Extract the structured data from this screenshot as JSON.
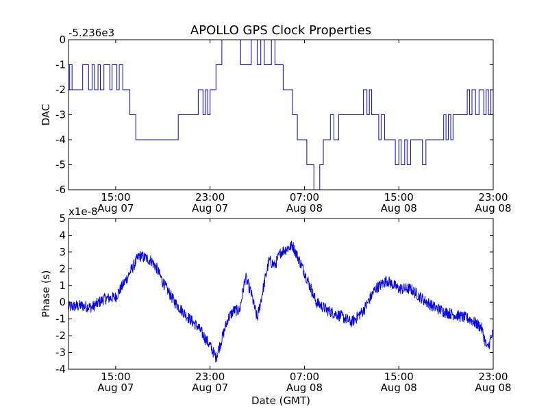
{
  "figure_title": "APOLLO GPS Clock Properties",
  "chart_data": [
    {
      "type": "line",
      "name": "dac",
      "title": "APOLLO GPS Clock Properties",
      "ylabel": "DAC",
      "xlabel": "",
      "offset_label": "-5.236e3",
      "ylim": [
        -6,
        0
      ],
      "yticks": [
        0,
        -1,
        -2,
        -3,
        -4,
        -5,
        -6
      ],
      "ytick_labels": [
        "0",
        "-1",
        "-2",
        "-3",
        "-4",
        "-5",
        "-6"
      ],
      "xlim_hours": [
        0,
        36
      ],
      "xticks_hours": [
        4,
        12,
        20,
        28,
        36
      ],
      "xtick_labels": [
        {
          "time": "15:00",
          "date": "Aug 07"
        },
        {
          "time": "23:00",
          "date": "Aug 07"
        },
        {
          "time": "07:00",
          "date": "Aug 08"
        },
        {
          "time": "15:00",
          "date": "Aug 08"
        },
        {
          "time": "23:00",
          "date": "Aug 08"
        }
      ],
      "series": [
        {
          "name": "DAC",
          "color": "#0000ff",
          "x": [
            0.0,
            0.1,
            0.3,
            1.1,
            1.2,
            1.5,
            1.7,
            2.0,
            2.2,
            2.5,
            2.7,
            3.0,
            3.2,
            3.5,
            3.7,
            4.1,
            4.3,
            4.6,
            4.8,
            5.0,
            5.2,
            5.5,
            5.7,
            6.0,
            6.2,
            6.5,
            6.7,
            7.0,
            7.2,
            7.5,
            7.7,
            8.0,
            8.2,
            8.5,
            8.8,
            9.3,
            10.6,
            11.0,
            11.4,
            11.6,
            11.8,
            12.0,
            12.2,
            12.5,
            12.6,
            13.0,
            13.3,
            14.6,
            15.0,
            15.5,
            16.0,
            16.3,
            16.6,
            16.8,
            17.2,
            17.5,
            17.7,
            17.9,
            18.2,
            18.5,
            19.0,
            19.2,
            19.4,
            19.7,
            20.0,
            20.2,
            20.5,
            20.8,
            21.3,
            21.6,
            22.0,
            22.2,
            22.5,
            22.9,
            23.4,
            24.5,
            25.0,
            25.3,
            25.5,
            25.7,
            26.0,
            26.3,
            26.5,
            26.8,
            27.0,
            27.5,
            27.7,
            28.0,
            28.2,
            28.5,
            28.7,
            29.0,
            29.3,
            30.0,
            30.3,
            31.0,
            31.3,
            31.6,
            31.8,
            32.0,
            32.2,
            32.4,
            32.6,
            32.8,
            33.0,
            33.2,
            33.4,
            33.6,
            33.8,
            34.0,
            34.2,
            34.5,
            34.8,
            35.0,
            35.2,
            35.4,
            35.6,
            35.8,
            36.0
          ],
          "values": [
            -2,
            -1,
            -2,
            -2,
            -1,
            -1,
            -2,
            -1,
            -2,
            -1,
            -2,
            -1,
            -1,
            -2,
            -1,
            -2,
            -1,
            -2,
            -2,
            -2,
            -3,
            -3,
            -4,
            -4,
            -4,
            -4,
            -4,
            -4,
            -4,
            -4,
            -4,
            -4,
            -4,
            -4,
            -4,
            -3,
            -3,
            -2,
            -3,
            -2,
            -3,
            -2,
            -2,
            -1,
            -1,
            0,
            0,
            -1,
            -1,
            0,
            -1,
            0,
            -1,
            -1,
            0,
            -1,
            -1,
            -1,
            -2,
            -2,
            -3,
            -3,
            -4,
            -4,
            -4,
            -5,
            -5,
            -6,
            -5,
            -4,
            -4,
            -3,
            -4,
            -3,
            -3,
            -3,
            -2,
            -3,
            -2,
            -3,
            -3,
            -4,
            -3,
            -4,
            -4,
            -4,
            -5,
            -4,
            -5,
            -4,
            -5,
            -4,
            -4,
            -5,
            -4,
            -4,
            -4,
            -4,
            -3,
            -4,
            -3,
            -4,
            -3,
            -3,
            -3,
            -3,
            -3,
            -3,
            -2,
            -3,
            -2,
            -3,
            -2,
            -2,
            -3,
            -2,
            -3,
            -2,
            -3
          ]
        }
      ]
    },
    {
      "type": "line",
      "name": "phase",
      "title": "",
      "ylabel": "Phase (s)",
      "xlabel": "Date (GMT)",
      "offset_label": "x1e-8",
      "ylim": [
        -4,
        5
      ],
      "yticks": [
        5,
        4,
        3,
        2,
        1,
        0,
        -1,
        -2,
        -3,
        -4
      ],
      "ytick_labels": [
        "5",
        "4",
        "3",
        "2",
        "1",
        "0",
        "-1",
        "-2",
        "-3",
        "-4"
      ],
      "xlim_hours": [
        0,
        36
      ],
      "xticks_hours": [
        4,
        12,
        20,
        28,
        36
      ],
      "xtick_labels": [
        {
          "time": "15:00",
          "date": "Aug 07"
        },
        {
          "time": "23:00",
          "date": "Aug 07"
        },
        {
          "time": "07:00",
          "date": "Aug 08"
        },
        {
          "time": "15:00",
          "date": "Aug 08"
        },
        {
          "time": "23:00",
          "date": "Aug 08"
        }
      ],
      "series": [
        {
          "name": "Phase",
          "color": "#0000ff",
          "noise_amplitude": 0.35,
          "x": [
            0,
            1,
            2,
            3,
            4,
            5,
            6,
            7,
            7.5,
            8,
            9,
            10,
            11,
            12,
            12.5,
            13,
            13.5,
            14,
            14.5,
            15,
            15.5,
            16,
            16.5,
            17,
            17.5,
            18,
            19,
            20,
            21,
            22,
            23,
            24,
            25,
            26,
            27,
            28,
            29,
            30,
            31,
            32,
            33,
            34,
            35,
            35.5,
            36
          ],
          "values": [
            -0.3,
            -0.2,
            -0.3,
            0.2,
            0.3,
            1.5,
            2.8,
            2.5,
            2.0,
            1.2,
            0.0,
            -0.8,
            -1.5,
            -2.6,
            -3.3,
            -2.2,
            -1.0,
            -0.5,
            -0.5,
            1.5,
            0.5,
            -1.0,
            0.8,
            2.5,
            2.2,
            3.0,
            3.4,
            1.8,
            0.0,
            -0.5,
            -0.8,
            -1.2,
            -0.5,
            0.8,
            1.3,
            0.8,
            0.8,
            0.2,
            -0.3,
            -0.6,
            -0.8,
            -1.0,
            -1.5,
            -2.8,
            -1.8
          ]
        }
      ]
    }
  ]
}
